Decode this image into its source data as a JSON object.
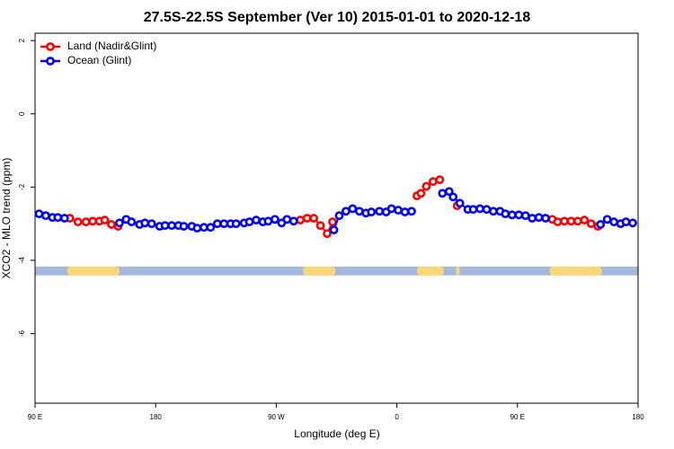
{
  "chart_data": {
    "type": "line",
    "title": "27.5S-22.5S September (Ver 10)   2015-01-01 to 2020-12-18",
    "xlabel": "Longitude (deg E)",
    "ylabel": "XCO2 - MLO trend (ppm)",
    "xlim": [
      90,
      540
    ],
    "ylim": [
      -7.9,
      2.2
    ],
    "xticks": [
      {
        "value": 90,
        "label": "90 E"
      },
      180,
      {
        "value": 270,
        "label": "90 W"
      },
      {
        "value": 360,
        "label": "0"
      },
      {
        "value": 450,
        "label": "90 E"
      },
      {
        "value": 540,
        "label": "180"
      }
    ],
    "yticks": [
      -6,
      -4,
      -2,
      0,
      2
    ],
    "legend": "top-left",
    "surface_strip": {
      "ylim": [
        -4.41,
        -4.17
      ],
      "ocean_color": "#a3b8dc",
      "land_color": "#fdd675",
      "land": [
        [
          114,
          153
        ],
        [
          290,
          314
        ],
        [
          375,
          395
        ],
        [
          404,
          407
        ],
        [
          474,
          513
        ]
      ]
    },
    "series": [
      {
        "name": "Land (Nadir&Glint)",
        "color": "#ff0000",
        "x": [
          116,
          122,
          128,
          133,
          138,
          142,
          147,
          152,
          288,
          293,
          298,
          303,
          308,
          312,
          375,
          378,
          382,
          387,
          392,
          405,
          476,
          480,
          485,
          490,
          495,
          500,
          505,
          510
        ],
        "values": [
          -2.85,
          -2.95,
          -2.95,
          -2.93,
          -2.93,
          -2.9,
          -3.02,
          -3.07,
          -2.9,
          -2.85,
          -2.85,
          -3.05,
          -3.27,
          -2.95,
          -2.24,
          -2.17,
          -1.98,
          -1.85,
          -1.8,
          -2.51,
          -2.88,
          -2.95,
          -2.93,
          -2.93,
          -2.93,
          -2.9,
          -3.0,
          -3.07
        ]
      },
      {
        "name": "Ocean (Glint)",
        "color": "#0000ff",
        "x": [
          93,
          98,
          103,
          107,
          112,
          153,
          158,
          162,
          168,
          172,
          177,
          183,
          187,
          192,
          197,
          201,
          207,
          211,
          216,
          221,
          226,
          231,
          236,
          240,
          246,
          250,
          255,
          260,
          264,
          269,
          274,
          278,
          283,
          313,
          317,
          322,
          327,
          332,
          337,
          341,
          347,
          352,
          356,
          361,
          366,
          371,
          394,
          399,
          402,
          407,
          413,
          417,
          422,
          427,
          432,
          437,
          441,
          446,
          451,
          456,
          461,
          466,
          471,
          512,
          517,
          522,
          527,
          531,
          536
        ],
        "values": [
          -2.73,
          -2.78,
          -2.83,
          -2.83,
          -2.85,
          -2.98,
          -2.88,
          -2.95,
          -3.02,
          -2.98,
          -3.0,
          -3.07,
          -3.05,
          -3.05,
          -3.05,
          -3.07,
          -3.07,
          -3.12,
          -3.1,
          -3.1,
          -3.0,
          -3.0,
          -3.0,
          -3.0,
          -2.98,
          -2.95,
          -2.9,
          -2.95,
          -2.93,
          -2.88,
          -2.98,
          -2.88,
          -2.93,
          -3.17,
          -2.78,
          -2.66,
          -2.59,
          -2.66,
          -2.71,
          -2.68,
          -2.66,
          -2.68,
          -2.59,
          -2.63,
          -2.68,
          -2.66,
          -2.17,
          -2.12,
          -2.27,
          -2.44,
          -2.61,
          -2.61,
          -2.59,
          -2.61,
          -2.66,
          -2.66,
          -2.73,
          -2.76,
          -2.76,
          -2.78,
          -2.85,
          -2.83,
          -2.85,
          -3.02,
          -2.88,
          -2.95,
          -3.0,
          -2.95,
          -2.98
        ]
      }
    ]
  }
}
